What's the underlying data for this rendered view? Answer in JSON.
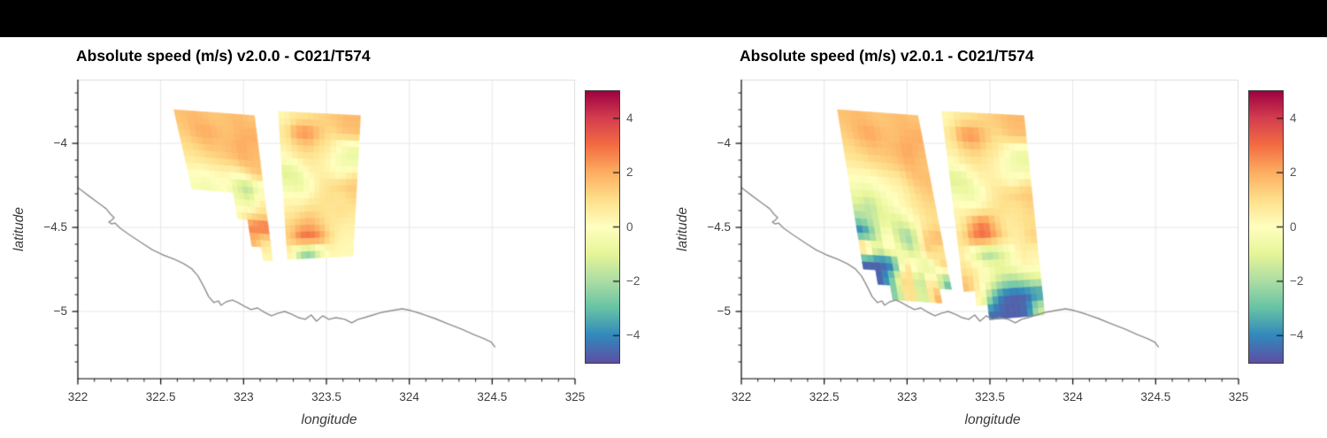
{
  "colors": {
    "top_bar": "#000000",
    "coastline": "#8e8e8e",
    "gridline": "#e7e7e7",
    "frame_light": "#dcdcdc",
    "spine": "#000000"
  },
  "chart_data": {
    "type": "heatmap",
    "colormap": {
      "vmin": -5,
      "vmax": 5,
      "stops": [
        "#5e4fa2",
        "#3288bd",
        "#66c2a5",
        "#abdda4",
        "#e6f598",
        "#ffffbf",
        "#fee08b",
        "#fdae61",
        "#f46d43",
        "#d53e4f",
        "#9e0142"
      ]
    },
    "colorbar": {
      "tick_values": [
        4,
        2,
        0,
        -2,
        -4
      ],
      "tick_labels": [
        "4",
        "2",
        "0",
        "−2",
        "−4"
      ]
    },
    "axes": {
      "xlim": [
        322,
        325
      ],
      "ylim": [
        -5.4,
        -3.621
      ],
      "x_major_ticks": [
        322,
        322.5,
        323,
        323.5,
        324,
        324.5,
        325
      ],
      "x_tick_labels": [
        "322",
        "322.5",
        "323",
        "323.5",
        "324",
        "324.5",
        "325"
      ],
      "y_major_ticks": [
        -4,
        -4.5,
        -5
      ],
      "y_tick_labels": [
        "−4",
        "−4.5",
        "−5"
      ],
      "minor_tick_step": 0.1,
      "grid": true
    },
    "panels": [
      {
        "title": "Absolute speed (m/s) v2.0.0 - C021/T574",
        "xlabel": "longitude",
        "ylabel": "latitude",
        "swaths": [
          {
            "name": "west-swath",
            "corners": {
              "tl": [
                322.58,
                -3.8
              ],
              "tr": [
                323.065,
                -3.835
              ],
              "bl": [
                322.78,
                -4.665
              ],
              "br": [
                323.175,
                -4.7
              ]
            },
            "cols": 7,
            "rows": 11,
            "values": [
              [
                1.6,
                1.8,
                1.7,
                1.5,
                1.6,
                1.8,
                1.6
              ],
              [
                1.4,
                1.9,
                2.1,
                1.8,
                1.6,
                1.9,
                2.0
              ],
              [
                1.1,
                1.4,
                1.7,
                1.6,
                1.8,
                2.1,
                1.8
              ],
              [
                0.7,
                0.9,
                1.1,
                1.3,
                1.5,
                1.9,
                1.7
              ],
              [
                0.2,
                0.1,
                0.3,
                0.4,
                0.2,
                0.8,
                1.5
              ],
              [
                -0.3,
                -0.5,
                -0.2,
                0.0,
                -1.2,
                -2.0,
                -0.5
              ],
              [
                null,
                null,
                null,
                null,
                -0.6,
                -1.2,
                0.4
              ],
              [
                null,
                null,
                null,
                null,
                0.3,
                0.6,
                1.0
              ],
              [
                null,
                null,
                null,
                null,
                null,
                2.8,
                3.1
              ],
              [
                null,
                null,
                null,
                null,
                null,
                1.8,
                1.0
              ],
              [
                null,
                null,
                null,
                null,
                null,
                null,
                0.3
              ]
            ]
          },
          {
            "name": "east-swath",
            "corners": {
              "tl": [
                323.21,
                -3.81
              ],
              "tr": [
                323.705,
                -3.835
              ],
              "bl": [
                323.265,
                -4.69
              ],
              "br": [
                323.66,
                -4.67
              ]
            },
            "cols": 7,
            "rows": 11,
            "values": [
              [
                0.3,
                0.8,
                1.0,
                1.2,
                1.4,
                1.7,
                1.8
              ],
              [
                0.8,
                2.3,
                2.6,
                1.6,
                1.0,
                1.4,
                1.6
              ],
              [
                0.5,
                1.2,
                1.5,
                1.0,
                0.6,
                -0.3,
                -0.6
              ],
              [
                0.0,
                0.5,
                0.8,
                0.6,
                0.2,
                -0.5,
                -0.8
              ],
              [
                -1.2,
                -0.8,
                0.3,
                0.5,
                0.3,
                -0.2,
                0.5
              ],
              [
                -0.6,
                -0.9,
                -0.3,
                0.6,
                1.0,
                1.3,
                1.5
              ],
              [
                0.2,
                0.0,
                0.4,
                0.8,
                1.0,
                0.8,
                1.2
              ],
              [
                0.6,
                0.9,
                1.2,
                1.0,
                0.8,
                1.0,
                0.8
              ],
              [
                1.2,
                1.8,
                2.0,
                1.5,
                0.8,
                0.6,
                0.5
              ],
              [
                1.5,
                3.0,
                3.2,
                2.6,
                1.2,
                0.4,
                0.3
              ],
              [
                0.3,
                -2.0,
                -2.4,
                -0.8,
                0.3,
                0.2,
                0.2
              ]
            ]
          }
        ]
      },
      {
        "title": "Absolute speed (m/s) v2.0.1 - C021/T574",
        "xlabel": "longitude",
        "ylabel": "latitude",
        "swaths": [
          {
            "name": "west-swath",
            "corners": {
              "tl": [
                322.58,
                -3.8
              ],
              "tr": [
                323.065,
                -3.835
              ],
              "bl": [
                322.765,
                -4.92
              ],
              "br": [
                323.285,
                -4.955
              ]
            },
            "cols": 7,
            "rows": 13,
            "values": [
              [
                1.6,
                1.8,
                1.7,
                1.5,
                1.6,
                1.8,
                1.6
              ],
              [
                1.4,
                1.9,
                2.2,
                1.8,
                1.6,
                1.9,
                2.0
              ],
              [
                1.1,
                1.4,
                1.7,
                1.6,
                1.8,
                2.2,
                1.8
              ],
              [
                0.7,
                0.9,
                1.1,
                1.3,
                1.5,
                1.9,
                1.6
              ],
              [
                0.1,
                0.0,
                0.3,
                0.5,
                0.8,
                1.5,
                1.7
              ],
              [
                -0.5,
                -0.7,
                -0.3,
                0.1,
                0.4,
                1.0,
                1.4
              ],
              [
                -1.2,
                -1.8,
                -0.8,
                -0.2,
                0.3,
                0.8,
                1.1
              ],
              [
                -2.2,
                -1.6,
                -0.8,
                -1.2,
                -0.6,
                0.5,
                1.0
              ],
              [
                -4.4,
                -2.0,
                0.3,
                -1.8,
                -2.4,
                1.2,
                1.8
              ],
              [
                2.4,
                -1.0,
                0.5,
                -0.8,
                -1.8,
                1.5,
                0.8
              ],
              [
                -4.6,
                -4.7,
                -4.5,
                0.8,
                0.3,
                -1.5,
                1.2
              ],
              [
                null,
                -4.6,
                -2.0,
                2.2,
                -2.5,
                1.5,
                -2.8
              ],
              [
                null,
                null,
                -2.5,
                2.0,
                -2.2,
                1.8,
                null
              ]
            ]
          },
          {
            "name": "east-swath",
            "corners": {
              "tl": [
                323.21,
                -3.81
              ],
              "tr": [
                323.705,
                -3.835
              ],
              "bl": [
                323.365,
                -5.06
              ],
              "br": [
                323.83,
                -5.02
              ]
            },
            "cols": 7,
            "rows": 14,
            "values": [
              [
                0.3,
                0.8,
                1.0,
                1.2,
                1.4,
                1.7,
                1.8
              ],
              [
                0.8,
                2.3,
                2.6,
                1.6,
                1.0,
                1.4,
                1.6
              ],
              [
                0.5,
                1.2,
                1.5,
                1.0,
                0.6,
                -0.3,
                -0.6
              ],
              [
                0.0,
                0.5,
                0.8,
                0.6,
                0.2,
                -0.5,
                -0.8
              ],
              [
                -1.2,
                -0.8,
                0.3,
                0.5,
                0.3,
                -0.2,
                0.5
              ],
              [
                -0.5,
                -0.8,
                -0.3,
                0.6,
                1.0,
                1.3,
                1.5
              ],
              [
                0.3,
                0.1,
                0.4,
                0.8,
                1.0,
                0.8,
                1.2
              ],
              [
                0.5,
                2.0,
                2.9,
                1.5,
                0.6,
                0.8,
                1.0
              ],
              [
                1.0,
                2.8,
                3.1,
                2.0,
                0.8,
                0.5,
                1.3
              ],
              [
                0.4,
                -1.2,
                -2.4,
                -1.6,
                -0.5,
                0.6,
                0.4
              ],
              [
                0.8,
                0.4,
                -0.3,
                -0.8,
                -0.4,
                0.3,
                0.2
              ],
              [
                1.6,
                0.4,
                -0.6,
                -1.8,
                -2.2,
                -1.8,
                -1.2
              ],
              [
                null,
                0.2,
                -2.8,
                -4.5,
                -4.7,
                -4.6,
                -4.0
              ],
              [
                null,
                null,
                -4.4,
                -4.7,
                -4.7,
                -4.5,
                -1.5
              ]
            ]
          }
        ]
      }
    ],
    "coastline": [
      [
        322.0,
        -4.263
      ],
      [
        322.064,
        -4.311
      ],
      [
        322.128,
        -4.358
      ],
      [
        322.171,
        -4.389
      ],
      [
        322.197,
        -4.421
      ],
      [
        322.219,
        -4.442
      ],
      [
        322.203,
        -4.458
      ],
      [
        322.187,
        -4.468
      ],
      [
        322.203,
        -4.479
      ],
      [
        322.224,
        -4.474
      ],
      [
        322.24,
        -4.49
      ],
      [
        322.256,
        -4.505
      ],
      [
        322.309,
        -4.542
      ],
      [
        322.373,
        -4.584
      ],
      [
        322.448,
        -4.632
      ],
      [
        322.512,
        -4.663
      ],
      [
        322.581,
        -4.689
      ],
      [
        322.64,
        -4.716
      ],
      [
        322.688,
        -4.747
      ],
      [
        322.725,
        -4.789
      ],
      [
        322.757,
        -4.847
      ],
      [
        322.789,
        -4.911
      ],
      [
        322.821,
        -4.947
      ],
      [
        322.848,
        -4.937
      ],
      [
        322.864,
        -4.963
      ],
      [
        322.896,
        -4.942
      ],
      [
        322.933,
        -4.932
      ],
      [
        322.965,
        -4.947
      ],
      [
        323.003,
        -4.968
      ],
      [
        323.045,
        -4.989
      ],
      [
        323.083,
        -4.979
      ],
      [
        323.125,
        -5.005
      ],
      [
        323.168,
        -5.026
      ],
      [
        323.205,
        -5.011
      ],
      [
        323.248,
        -5.0
      ],
      [
        323.291,
        -5.016
      ],
      [
        323.333,
        -5.037
      ],
      [
        323.371,
        -5.047
      ],
      [
        323.408,
        -5.021
      ],
      [
        323.44,
        -5.058
      ],
      [
        323.477,
        -5.026
      ],
      [
        323.515,
        -5.047
      ],
      [
        323.557,
        -5.037
      ],
      [
        323.611,
        -5.047
      ],
      [
        323.653,
        -5.068
      ],
      [
        323.691,
        -5.047
      ],
      [
        323.728,
        -5.037
      ],
      [
        323.781,
        -5.021
      ],
      [
        323.835,
        -5.005
      ],
      [
        323.893,
        -4.995
      ],
      [
        323.957,
        -4.984
      ],
      [
        324.011,
        -4.995
      ],
      [
        324.08,
        -5.016
      ],
      [
        324.155,
        -5.042
      ],
      [
        324.235,
        -5.074
      ],
      [
        324.315,
        -5.105
      ],
      [
        324.389,
        -5.137
      ],
      [
        324.453,
        -5.163
      ],
      [
        324.496,
        -5.184
      ],
      [
        324.517,
        -5.211
      ]
    ]
  }
}
